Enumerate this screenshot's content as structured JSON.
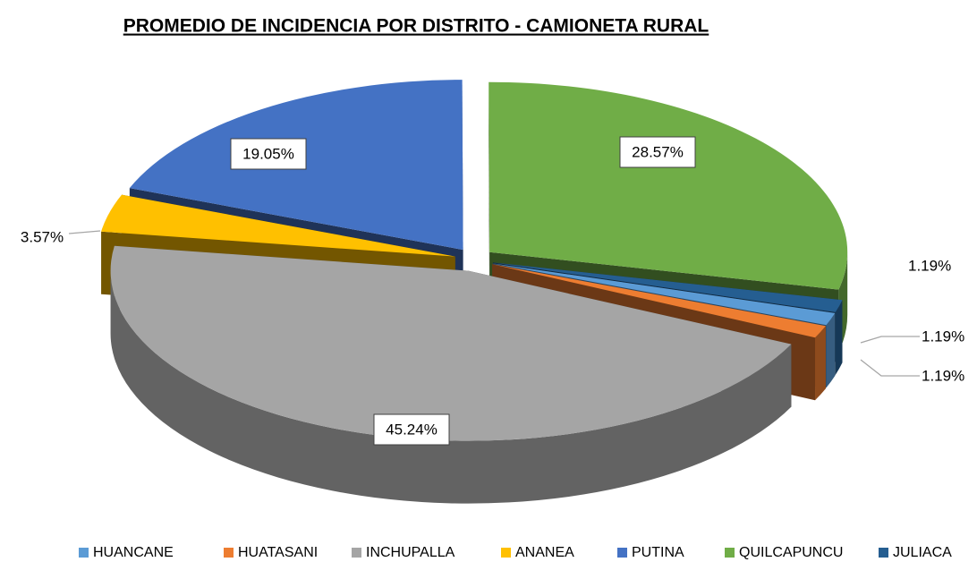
{
  "chart_data": {
    "type": "pie",
    "title": "PROMEDIO DE INCIDENCIA POR DISTRITO - CAMIONETA RURAL",
    "categories": [
      "HUANCANE",
      "HUATASANI",
      "INCHUPALLA",
      "ANANEA",
      "PUTINA",
      "QUILCAPUNCU",
      "JULIACA"
    ],
    "values": [
      1.19,
      1.19,
      45.24,
      3.57,
      19.05,
      28.57,
      1.19
    ],
    "value_labels": [
      "1.19%",
      "1.19%",
      "45.24%",
      "3.57%",
      "19.05%",
      "28.57%",
      "1.19%"
    ],
    "colors": [
      "#5b9bd5",
      "#ed7d31",
      "#a5a5a5",
      "#ffc000",
      "#4472c4",
      "#70ad47",
      "#255e91"
    ],
    "legend": "bottom"
  }
}
